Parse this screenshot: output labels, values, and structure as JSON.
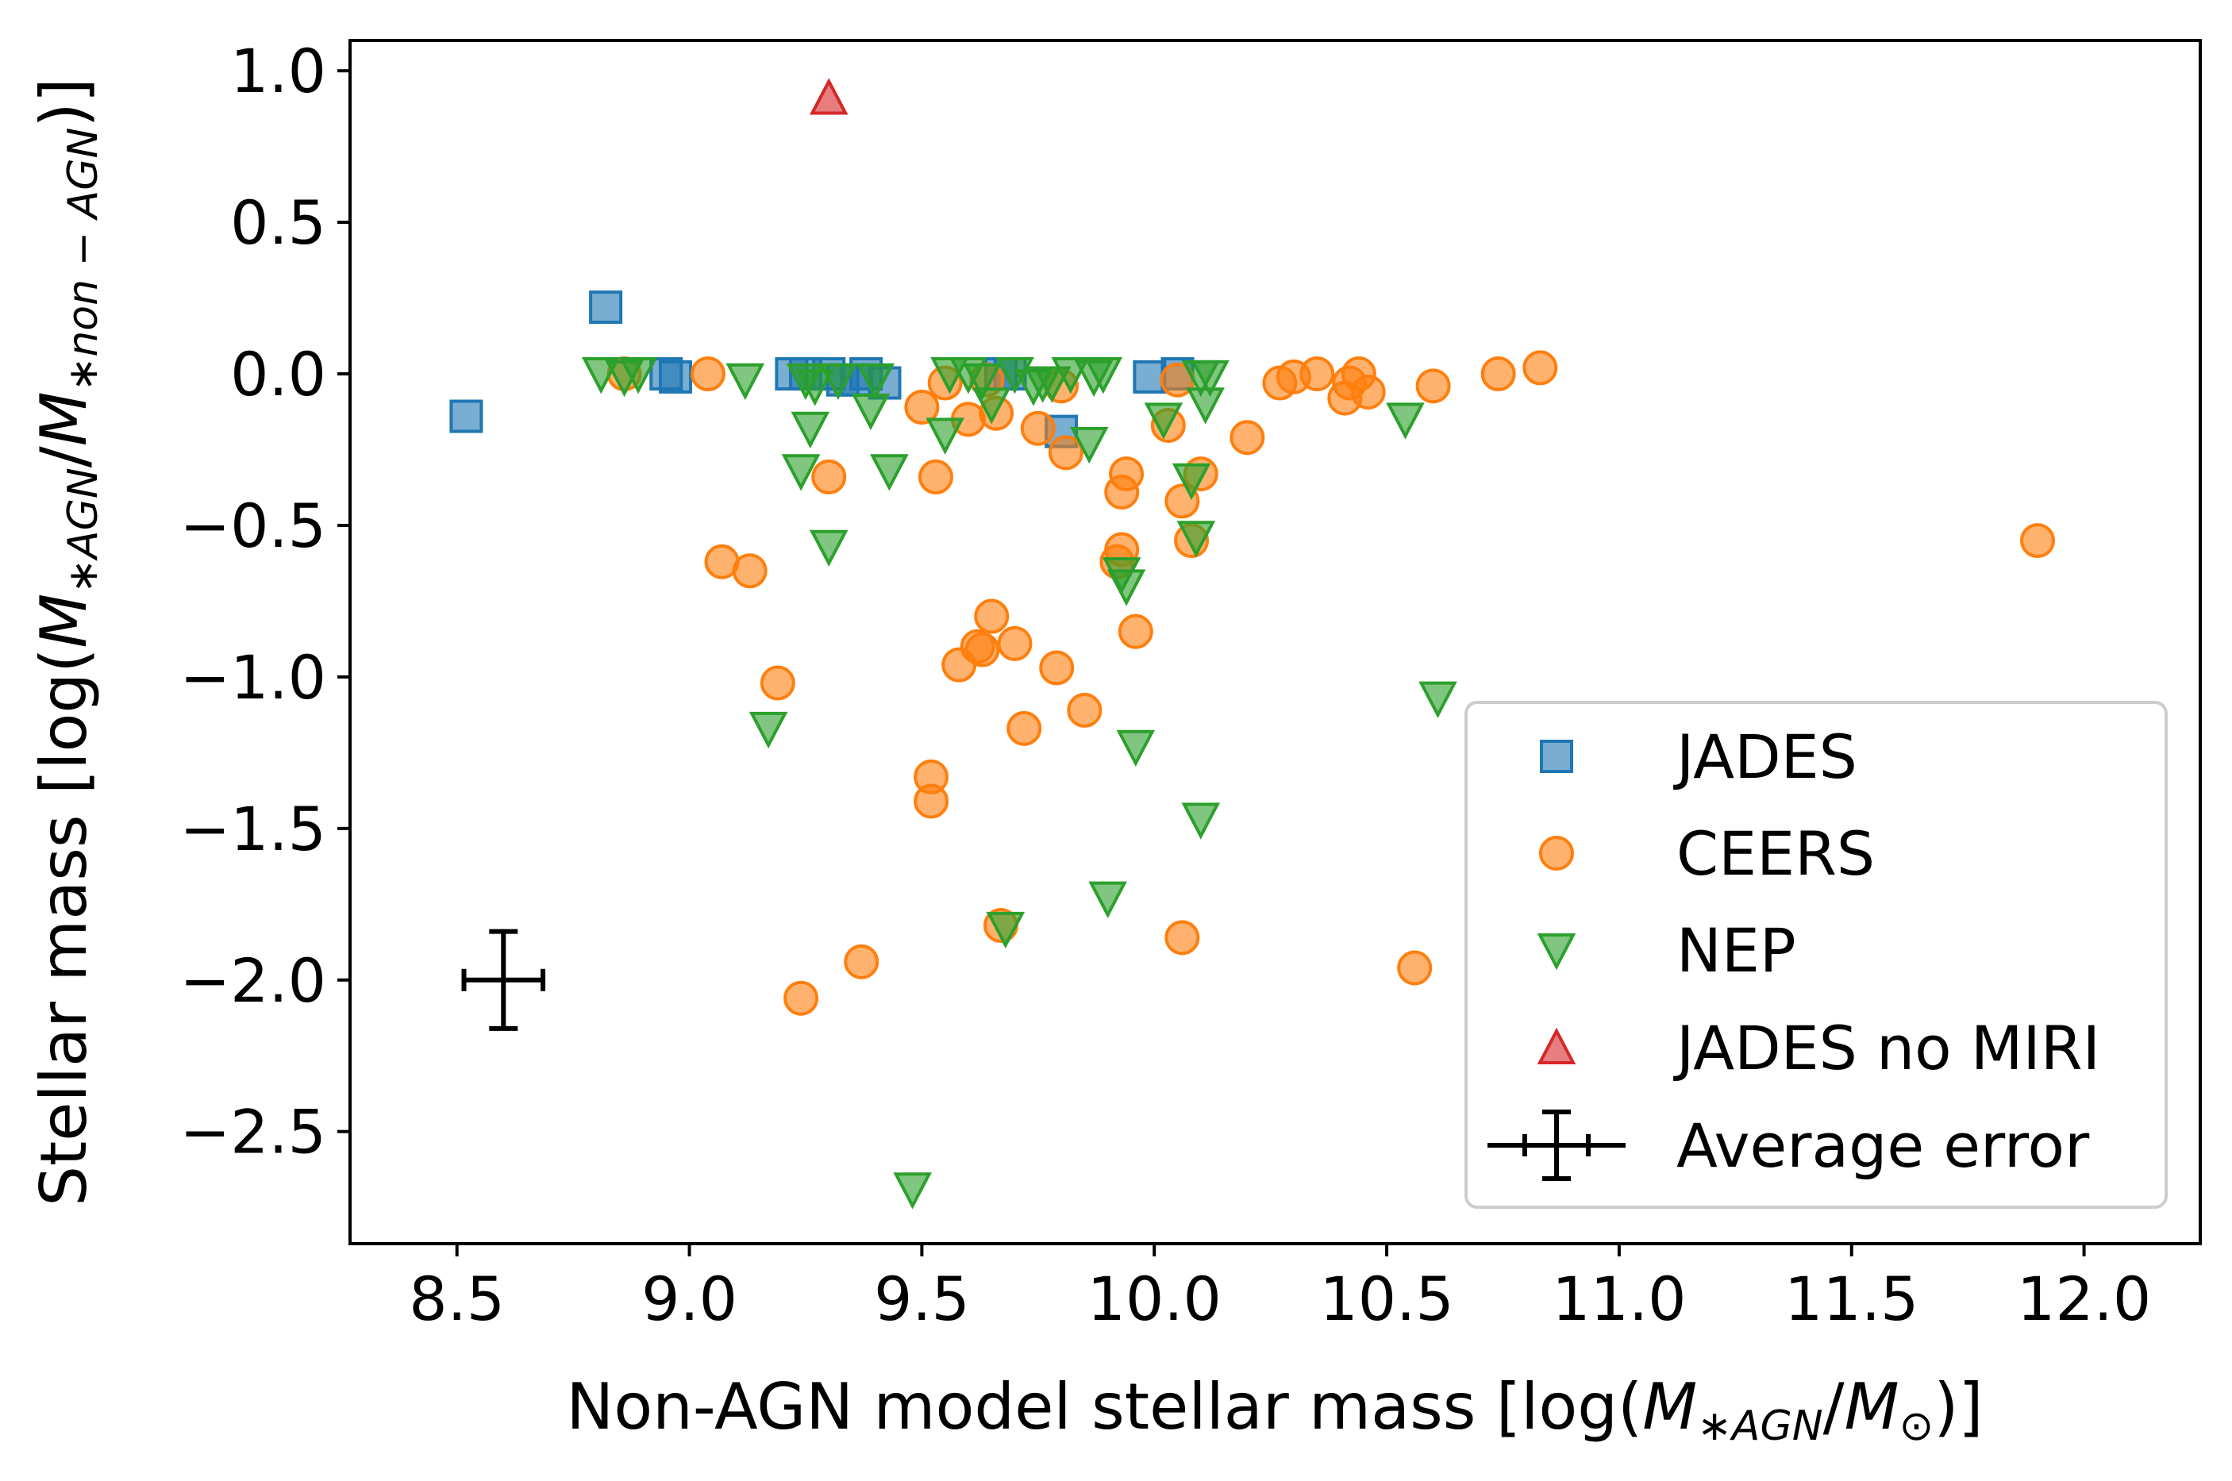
{
  "chart_data": {
    "type": "scatter",
    "xlabel": "Non-AGN model stellar mass [log(M*AGN/M⊙)]",
    "ylabel": "Stellar mass [log(M*AGN/M*non−AGN)]",
    "xlabel_parts": {
      "prefix": "Non-AGN model stellar mass [log(",
      "m1": "M",
      "s1": "∗AGN",
      "slash": "/",
      "m2": "M",
      "s2": "⊙",
      "suffix": ")]"
    },
    "ylabel_parts": {
      "prefix": "Stellar mass [log(",
      "m1": "M",
      "s1": "∗AGN",
      "slash": "/",
      "m2": "M",
      "s2": "∗non − AGN",
      "suffix": ")]"
    },
    "xlim": [
      8.27,
      12.25
    ],
    "ylim": [
      -2.87,
      1.1
    ],
    "xticks": [
      8.5,
      9.0,
      9.5,
      10.0,
      10.5,
      11.0,
      11.5,
      12.0
    ],
    "xtick_labels": [
      "8.5",
      "9.0",
      "9.5",
      "10.0",
      "10.5",
      "11.0",
      "11.5",
      "12.0"
    ],
    "yticks": [
      1.0,
      0.5,
      0.0,
      -0.5,
      -1.0,
      -1.5,
      -2.0,
      -2.5
    ],
    "ytick_labels": [
      "1.0",
      "0.5",
      "0.0",
      "−0.5",
      "−1.0",
      "−1.5",
      "−2.0",
      "−2.5"
    ],
    "grid": false,
    "legend_position": "lower-right",
    "series": [
      {
        "name": "JADES",
        "marker": "square",
        "color": "#1f77b4",
        "x": [
          8.52,
          8.82,
          8.95,
          8.97,
          9.22,
          9.25,
          9.3,
          9.33,
          9.36,
          9.38,
          9.42,
          9.67,
          9.69,
          9.8,
          9.99,
          10.05
        ],
        "y": [
          -0.14,
          0.22,
          0.0,
          -0.01,
          0.0,
          0.0,
          0.0,
          -0.02,
          -0.02,
          0.0,
          -0.03,
          0.0,
          0.0,
          -0.19,
          -0.01,
          0.0
        ]
      },
      {
        "name": "CEERS",
        "marker": "circle",
        "color": "#ff7f0e",
        "x": [
          8.86,
          9.04,
          9.07,
          9.13,
          9.19,
          9.24,
          9.3,
          9.37,
          9.5,
          9.52,
          9.52,
          9.53,
          9.55,
          9.58,
          9.6,
          9.62,
          9.63,
          9.64,
          9.65,
          9.66,
          9.67,
          9.7,
          9.72,
          9.75,
          9.79,
          9.8,
          9.81,
          9.85,
          9.92,
          9.93,
          9.93,
          9.94,
          9.96,
          10.03,
          10.05,
          10.06,
          10.06,
          10.08,
          10.1,
          10.2,
          10.27,
          10.3,
          10.35,
          10.41,
          10.42,
          10.44,
          10.46,
          10.56,
          10.6,
          10.74,
          10.83,
          11.9
        ],
        "y": [
          0.0,
          0.0,
          -0.62,
          -0.65,
          -1.02,
          -2.06,
          -0.34,
          -1.94,
          -0.11,
          -1.33,
          -1.41,
          -0.34,
          -0.03,
          -0.96,
          -0.15,
          -0.9,
          -0.91,
          -0.02,
          -0.8,
          -0.13,
          -1.82,
          -0.89,
          -1.17,
          -0.18,
          -0.97,
          -0.04,
          -0.26,
          -1.11,
          -0.62,
          -0.39,
          -0.58,
          -0.33,
          -0.85,
          -0.17,
          -0.02,
          -0.42,
          -1.86,
          -0.55,
          -0.33,
          -0.21,
          -0.03,
          -0.01,
          0.0,
          -0.08,
          -0.03,
          0.0,
          -0.06,
          -1.96,
          -0.04,
          0.0,
          0.02,
          -0.55
        ]
      },
      {
        "name": "NEP",
        "marker": "triangle-down",
        "color": "#2ca02c",
        "x": [
          8.81,
          8.86,
          8.89,
          9.12,
          9.17,
          9.24,
          9.25,
          9.26,
          9.27,
          9.3,
          9.32,
          9.39,
          9.4,
          9.43,
          9.48,
          9.55,
          9.56,
          9.6,
          9.63,
          9.65,
          9.68,
          9.7,
          9.74,
          9.76,
          9.78,
          9.82,
          9.86,
          9.87,
          9.89,
          9.9,
          9.93,
          9.94,
          9.96,
          10.02,
          10.08,
          10.09,
          10.1,
          10.1,
          10.11,
          10.12,
          10.54,
          10.61
        ],
        "y": [
          0.0,
          -0.01,
          0.0,
          -0.02,
          -1.17,
          -0.32,
          -0.02,
          -0.18,
          -0.04,
          -0.57,
          -0.02,
          -0.12,
          -0.02,
          -0.32,
          -2.69,
          -0.2,
          0.0,
          0.0,
          -0.02,
          -0.1,
          -1.83,
          0.0,
          -0.04,
          -0.03,
          -0.03,
          0.0,
          -0.23,
          -0.01,
          0.0,
          -1.73,
          -0.66,
          -0.7,
          -1.23,
          -0.15,
          -0.35,
          -0.54,
          -1.47,
          -0.01,
          -0.1,
          -0.01,
          -0.15,
          -1.07
        ]
      },
      {
        "name": "JADES no MIRI",
        "marker": "triangle-up",
        "color": "#d62728",
        "x": [
          9.3
        ],
        "y": [
          0.91
        ]
      }
    ],
    "average_error": {
      "name": "Average error",
      "x": 8.6,
      "y": -2.0,
      "xerr": 0.085,
      "yerr": 0.16,
      "color": "#000000"
    }
  }
}
